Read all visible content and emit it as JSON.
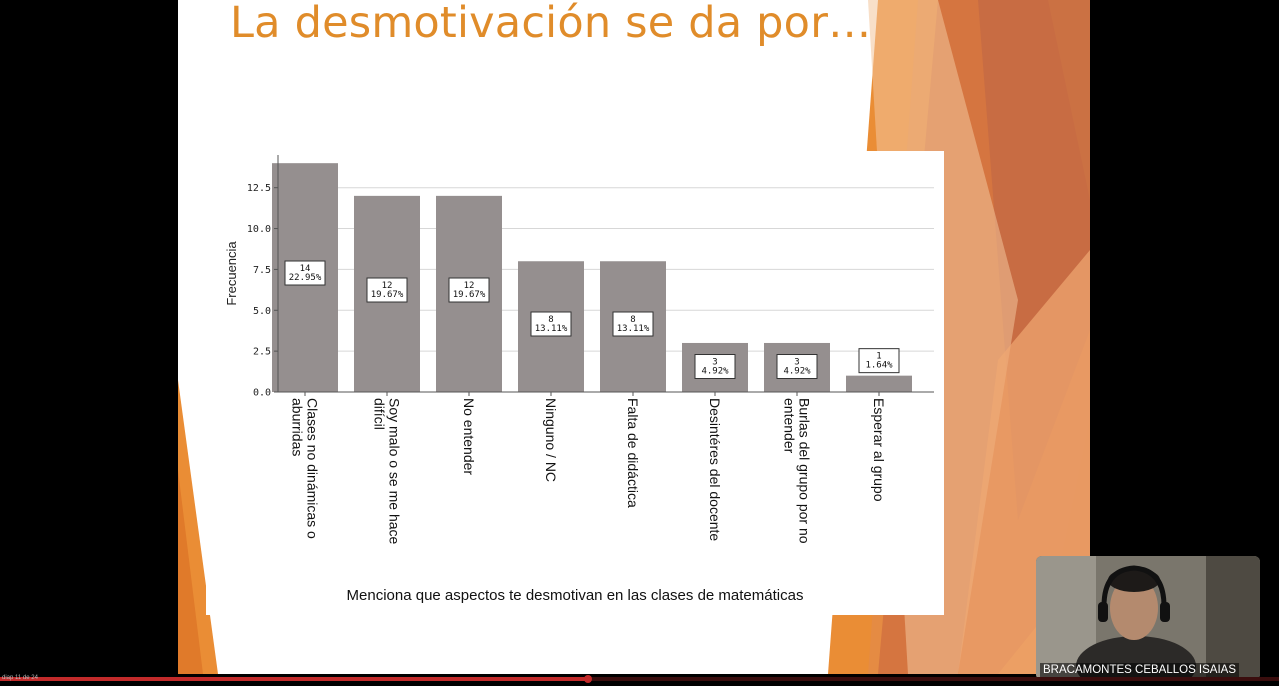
{
  "slide": {
    "title": "La desmotivación se da por…"
  },
  "chart_data": {
    "type": "bar",
    "title": "",
    "xlabel": "Menciona que aspectos te desmotivan en las clases de matemáticas",
    "ylabel": "Frecuencia",
    "ylim": [
      0,
      14.5
    ],
    "yticks": [
      "0.0",
      "2.5",
      "5.0",
      "7.5",
      "10.0",
      "12.5"
    ],
    "ytick_values": [
      0,
      2.5,
      5,
      7.5,
      10,
      12.5
    ],
    "grid": true,
    "bar_color": "#958f8f",
    "categories": [
      [
        "Clases no dinámicas o",
        "aburridas"
      ],
      [
        "Soy malo o se me hace",
        "difícil"
      ],
      [
        "No entender"
      ],
      [
        "Ninguno / NC"
      ],
      [
        "Falta de didáctica"
      ],
      [
        "Desintéres del docente"
      ],
      [
        "Burlas del grupo por no",
        "entender"
      ],
      [
        "Esperar al grupo"
      ]
    ],
    "values": [
      14,
      12,
      12,
      8,
      8,
      3,
      3,
      1
    ],
    "percent_labels": [
      "22.95%",
      "19.67%",
      "19.67%",
      "13.11%",
      "13.11%",
      "4.92%",
      "4.92%",
      "1.64%"
    ]
  },
  "presenter": {
    "name": "BRACAMONTES CEBALLOS ISAIAS"
  },
  "player": {
    "slide_counter": "diap 11 de 24",
    "progress": 0.46,
    "accent": "#c22a2a"
  }
}
